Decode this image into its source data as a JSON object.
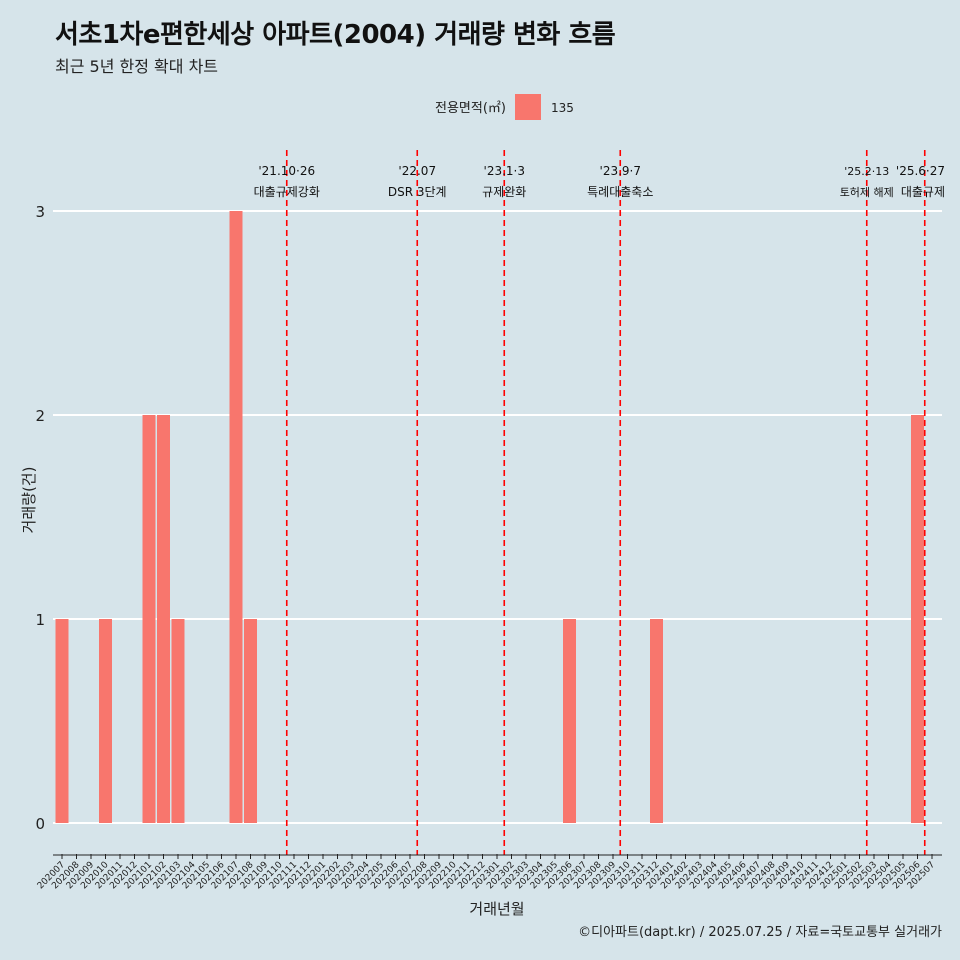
{
  "chart_data": {
    "type": "bar",
    "title": "서초1차e편한세상 아파트(2004) 거래량 변화 흐름",
    "subtitle": "최근 5년 한정 확대 차트",
    "xlabel": "거래년월",
    "ylabel": "거래량(건)",
    "ylim": [
      0,
      3
    ],
    "yticks": [
      "0",
      "1",
      "2",
      "3"
    ],
    "legend": {
      "title": "전용면적(㎡)",
      "position": "top",
      "entries": [
        "135"
      ]
    },
    "categories": [
      "202007",
      "202008",
      "202009",
      "202010",
      "202011",
      "202012",
      "202101",
      "202102",
      "202103",
      "202104",
      "202105",
      "202106",
      "202107",
      "202108",
      "202109",
      "202110",
      "202111",
      "202112",
      "202201",
      "202202",
      "202203",
      "202204",
      "202205",
      "202206",
      "202207",
      "202208",
      "202209",
      "202210",
      "202211",
      "202212",
      "202301",
      "202302",
      "202303",
      "202304",
      "202305",
      "202306",
      "202307",
      "202308",
      "202309",
      "202310",
      "202311",
      "202312",
      "202401",
      "202402",
      "202403",
      "202404",
      "202405",
      "202406",
      "202407",
      "202408",
      "202409",
      "202410",
      "202411",
      "202412",
      "202501",
      "202502",
      "202503",
      "202504",
      "202505",
      "202506",
      "202507"
    ],
    "series": [
      {
        "name": "135",
        "color": "#f8766d",
        "values": [
          1,
          0,
          0,
          1,
          0,
          0,
          2,
          2,
          1,
          0,
          0,
          0,
          3,
          1,
          0,
          0,
          0,
          0,
          0,
          0,
          0,
          0,
          0,
          0,
          0,
          0,
          0,
          0,
          0,
          0,
          0,
          0,
          0,
          0,
          0,
          1,
          0,
          0,
          0,
          0,
          0,
          1,
          0,
          0,
          0,
          0,
          0,
          0,
          0,
          0,
          0,
          0,
          0,
          0,
          0,
          0,
          0,
          0,
          0,
          2,
          0
        ]
      }
    ],
    "annotations": [
      {
        "category": "202110",
        "date": "'21.10·26",
        "label": "대출규제강화"
      },
      {
        "category": "202207",
        "date": "'22.07",
        "label": "DSR 3단계"
      },
      {
        "category": "202301",
        "date": "'23.1·3",
        "label": "규제완화"
      },
      {
        "category": "202309",
        "date": "'23.9·7",
        "label": "특례대출축소"
      },
      {
        "category": "202502",
        "date": "'25.2·13",
        "label": "토허제 해제"
      },
      {
        "category": "202506",
        "date": "'25.6·27",
        "label": "대출규제"
      }
    ],
    "grid": "horizontal",
    "annotation_line_color": "#ff0000"
  },
  "caption": "©디아파트(dapt.kr) / 2025.07.25 / 자료=국토교통부 실거래가"
}
